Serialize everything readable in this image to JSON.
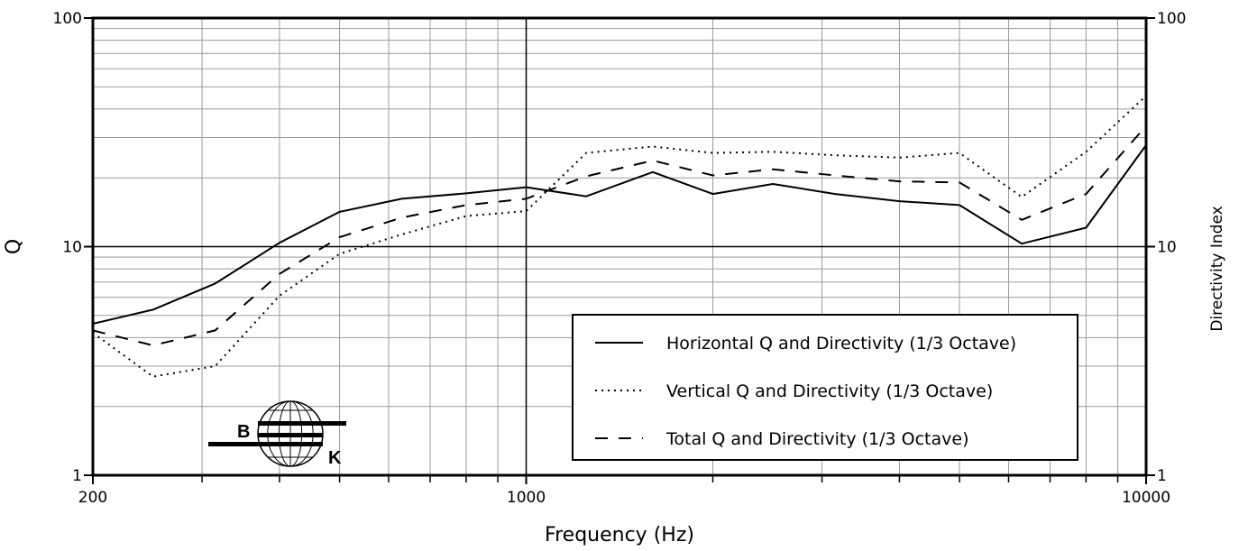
{
  "chart_data": {
    "type": "line",
    "xlabel": "Frequency (Hz)",
    "ylabel": "Q",
    "ylabel_right": "Directivity Index",
    "x_scale": "log",
    "y_scale": "log",
    "xlim": [
      200,
      10000
    ],
    "ylim": [
      1,
      100
    ],
    "x_ticks": [
      {
        "value": 200,
        "label": "200"
      },
      {
        "value": 1000,
        "label": "1000"
      },
      {
        "value": 10000,
        "label": "10000"
      }
    ],
    "y_ticks": [
      {
        "value": 1,
        "label": "1"
      },
      {
        "value": 10,
        "label": "10"
      },
      {
        "value": 100,
        "label": "100"
      }
    ],
    "y_ticks_right": [
      {
        "value": 1,
        "label": "1"
      },
      {
        "value": 10,
        "label": "10"
      },
      {
        "value": 100,
        "label": "100"
      }
    ],
    "grid": true,
    "legend_position": "bottom-right",
    "x": [
      200,
      250,
      315,
      400,
      500,
      630,
      800,
      1000,
      1250,
      1600,
      2000,
      2500,
      3150,
      4000,
      5000,
      6300,
      8000,
      10000
    ],
    "series": [
      {
        "name": "Horizontal Q and Directivity (1/3 Octave)",
        "style": "solid",
        "values": [
          4.6,
          5.3,
          6.9,
          10.4,
          14.2,
          16.2,
          17.1,
          18.2,
          16.6,
          21.2,
          17.0,
          18.8,
          17.0,
          15.8,
          15.2,
          10.3,
          12.1,
          27.8
        ]
      },
      {
        "name": "Vertical Q and Directivity (1/3 Octave)",
        "style": "dotted",
        "values": [
          4.2,
          2.7,
          3.0,
          6.1,
          9.3,
          11.3,
          13.6,
          14.3,
          25.7,
          27.4,
          25.7,
          26.0,
          25.1,
          24.5,
          25.7,
          16.5,
          26.0,
          45.7
        ]
      },
      {
        "name": "Total Q and Directivity (1/3 Octave)",
        "style": "dashed",
        "values": [
          4.3,
          3.7,
          4.3,
          7.6,
          11.0,
          13.4,
          15.2,
          16.2,
          20.3,
          23.8,
          20.5,
          21.8,
          20.5,
          19.3,
          19.1,
          13.1,
          17.0,
          33.7
        ]
      }
    ],
    "logo": {
      "letters": [
        "B",
        "K"
      ]
    }
  }
}
